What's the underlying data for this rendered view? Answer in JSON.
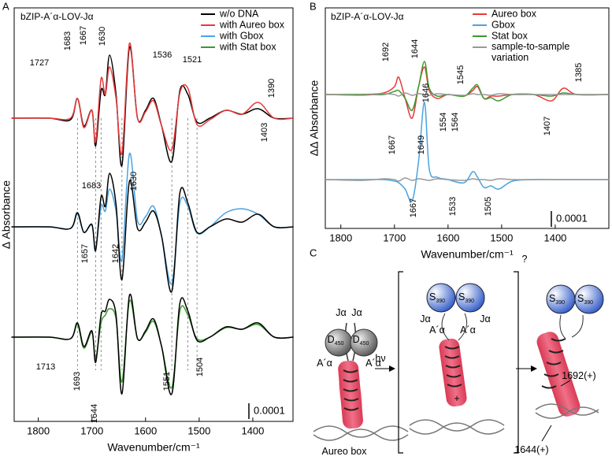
{
  "panels": [
    "A",
    "B",
    "C"
  ],
  "chart_data": [
    {
      "type": "line",
      "title": "bZIP-A´α-LOV-Jα",
      "x_label": "Wavenumber/cm⁻¹",
      "y_label": "Δ Absorbance",
      "x": [
        1850,
        1780,
        1740,
        1727,
        1715,
        1700,
        1693,
        1683,
        1675,
        1667,
        1655,
        1644,
        1630,
        1615,
        1600,
        1585,
        1570,
        1551,
        1536,
        1521,
        1504,
        1480,
        1450,
        1420,
        1390,
        1360,
        1324
      ],
      "xlim": [
        1845,
        1325
      ],
      "xticks": [
        1800,
        1700,
        1600,
        1500,
        1400
      ],
      "ylim": [
        0,
        0.002625
      ],
      "scale_bar": 0.0001,
      "legend": "upper right",
      "reference_lines": [
        1727,
        1693,
        1683,
        1644,
        1551,
        1521,
        1504
      ],
      "series": [
        {
          "name": "w/o DNA",
          "color": "#000000",
          "values": [
            0.001925,
            0.001925,
            0.001915,
            0.00205,
            0.001875,
            0.001975,
            0.00175,
            0.0021,
            0.002075,
            0.002325,
            0.002075,
            0.001625,
            0.002375,
            0.001925,
            0.001975,
            0.00205,
            0.001875,
            0.00165,
            0.0021,
            0.002075,
            0.0019,
            0.001925,
            0.001975,
            0.00195,
            0.001985,
            0.001925,
            0.001925
          ]
        },
        {
          "name": "with Aureo box",
          "color": "#e8393b",
          "values": [
            0.001925,
            0.001925,
            0.001925,
            0.00205,
            0.001865,
            0.001975,
            0.001775,
            0.002175,
            0.002075,
            0.00225,
            0.00205,
            0.0017,
            0.0024,
            0.001925,
            0.001965,
            0.002035,
            0.001875,
            0.001725,
            0.002085,
            0.002115,
            0.001885,
            0.001915,
            0.001975,
            0.00195,
            0.002025,
            0.001925,
            0.001925
          ]
        },
        {
          "name": "with Gbox",
          "color": "#4aa3df",
          "values": [
            0.001235,
            0.001235,
            0.001225,
            0.001315,
            0.0012,
            0.001245,
            0.0011,
            0.001365,
            0.001335,
            0.001475,
            0.001335,
            0.001025,
            0.0017,
            0.001275,
            0.0013,
            0.001365,
            0.001175,
            0.000875,
            0.001385,
            0.001365,
            0.001195,
            0.001235,
            0.001325,
            0.00135,
            0.001315,
            0.001235,
            0.001235
          ]
        },
        {
          "name": "with Stat box",
          "color": "#3a9a2e",
          "values": [
            0.000535,
            0.000535,
            0.000525,
            0.000615,
            0.000465,
            0.000565,
            0.0004,
            0.000625,
            0.000675,
            0.000715,
            0.00065,
            0.00025,
            0.000765,
            0.000525,
            0.000565,
            0.000635,
            0.000475,
            0.000215,
            0.0007,
            0.000675,
            0.000525,
            0.000535,
            0.000595,
            0.000585,
            0.000615,
            0.000535,
            0.000535
          ]
        },
        {
          "color": "#000000",
          "values": [
            0.001235,
            0.001235,
            0.001225,
            0.001325,
            0.0012,
            0.00125,
            0.001085,
            0.001425,
            0.001365,
            0.001575,
            0.001375,
            0.0009,
            0.001525,
            0.001225,
            0.001265,
            0.001335,
            0.001175,
            0.000825,
            0.00145,
            0.001385,
            0.0012,
            0.001235,
            0.001285,
            0.001265,
            0.001315,
            0.001235,
            0.001235
          ]
        },
        {
          "color": "#000000",
          "values": [
            0.000535,
            0.000535,
            0.000525,
            0.000625,
            0.000475,
            0.000575,
            0.000375,
            0.000675,
            0.0007,
            0.000775,
            0.000675,
            0.000175,
            0.0008,
            0.000525,
            0.000575,
            0.00065,
            0.000475,
            0.000175,
            0.00075,
            0.0007,
            0.000515,
            0.000535,
            0.0006,
            0.000585,
            0.000625,
            0.000535,
            0.000535
          ]
        }
      ],
      "annotations": [
        {
          "text": "1727",
          "color": "#000000"
        },
        {
          "text": "1683",
          "color": "#e8393b"
        },
        {
          "text": "1667",
          "color": "#000000"
        },
        {
          "text": "1630",
          "color": "#000000"
        },
        {
          "text": "1536",
          "color": "#000000"
        },
        {
          "text": "1521",
          "color": "#000000"
        },
        {
          "text": "1390",
          "color": "#e8393b"
        },
        {
          "text": "1403",
          "color": "#e8393b"
        },
        {
          "text": "1683",
          "color": "#000000"
        },
        {
          "text": "1630",
          "color": "#4aa3df"
        },
        {
          "text": "1657",
          "color": "#4aa3df"
        },
        {
          "text": "1642",
          "color": "#4aa3df"
        },
        {
          "text": "1713",
          "color": "#000000"
        },
        {
          "text": "1693",
          "color": "#000000"
        },
        {
          "text": "1644",
          "color": "#000000"
        },
        {
          "text": "1551",
          "color": "#000000"
        },
        {
          "text": "1504",
          "color": "#000000"
        }
      ]
    },
    {
      "type": "line",
      "title": "bZIP-A´α-LOV-Jα",
      "x_label": "Wavenumber/cm⁻¹",
      "y_label": "ΔΔ Absorbance",
      "x": [
        1829,
        1760,
        1720,
        1700,
        1692,
        1680,
        1667,
        1655,
        1644,
        1635,
        1620,
        1600,
        1570,
        1554,
        1545,
        1533,
        1520,
        1505,
        1480,
        1440,
        1407,
        1385,
        1360,
        1300
      ],
      "xlim": [
        1829,
        1300
      ],
      "xticks": [
        1800,
        1700,
        1600,
        1500,
        1400
      ],
      "ylim": [
        0,
        0.0014
      ],
      "scale_bar": 0.0001,
      "legend": "upper right",
      "series": [
        {
          "name": "Aureo box",
          "color": "#e8393b",
          "values": [
            0.00085,
            0.00085,
            0.00086,
            0.0009,
            0.00096,
            0.000825,
            0.0007,
            0.0009,
            0.001025,
            0.000875,
            0.000825,
            0.00085,
            0.00084,
            0.000875,
            0.0009,
            0.000825,
            0.00084,
            0.00084,
            0.00085,
            0.00085,
            0.00081,
            0.00089,
            0.00085,
            0.00085
          ]
        },
        {
          "name": "Gbox",
          "color": "#4aa3df",
          "values": [
            0.00031,
            0.00031,
            0.00031,
            0.0003,
            0.00029,
            0.00025,
            0.000175,
            0.000425,
            0.0008,
            0.000375,
            0.000325,
            0.00031,
            0.00029,
            0.00036,
            0.000325,
            0.00026,
            0.00027,
            0.00025,
            0.0003,
            0.00031,
            0.00031,
            0.00031,
            0.00031,
            0.00031
          ]
        },
        {
          "name": "Stat box",
          "color": "#3a9a2e",
          "values": [
            0.00085,
            0.00085,
            0.00085,
            0.00087,
            0.000875,
            0.000825,
            0.00075,
            0.0009,
            0.00106,
            0.00089,
            0.00084,
            0.00085,
            0.00084,
            0.00089,
            0.00091,
            0.000825,
            0.00083,
            0.00081,
            0.00085,
            0.00085,
            0.00084,
            0.00086,
            0.00085,
            0.00085
          ]
        },
        {
          "name": "sample-to-sample variation",
          "color": "#999999",
          "values": [
            0.00085,
            0.000845,
            0.000855,
            0.00085,
            0.00084,
            0.00086,
            0.000845,
            0.000855,
            0.00085,
            0.000845,
            0.000855,
            0.00085,
            0.000845,
            0.000855,
            0.00085,
            0.00085,
            0.000845,
            0.000855,
            0.00085,
            0.00085,
            0.00085,
            0.00085,
            0.00085,
            0.00085
          ]
        },
        {
          "color": "#999999",
          "values": [
            0.00031,
            0.000305,
            0.000315,
            0.00031,
            0.0003,
            0.00032,
            0.000305,
            0.000315,
            0.00031,
            0.000305,
            0.000315,
            0.00031,
            0.000305,
            0.000315,
            0.00031,
            0.00031,
            0.000305,
            0.000315,
            0.00031,
            0.00031,
            0.00031,
            0.00031,
            0.00031,
            0.00031
          ]
        }
      ],
      "annotations": [
        {
          "text": "1692",
          "color": "#e8393b"
        },
        {
          "text": "1644",
          "color": "#e8393b"
        },
        {
          "text": "1545",
          "color": "#e8393b"
        },
        {
          "text": "1385",
          "color": "#e8393b"
        },
        {
          "text": "1667",
          "color": "#e8393b"
        },
        {
          "text": "1649",
          "color": "#3a9a2e"
        },
        {
          "text": "1646",
          "color": "#4aa3df"
        },
        {
          "text": "1564",
          "color": "#e8393b"
        },
        {
          "text": "1554",
          "color": "#4aa3df"
        },
        {
          "text": "1407",
          "color": "#e8393b"
        },
        {
          "text": "1667",
          "color": "#4aa3df"
        },
        {
          "text": "1533",
          "color": "#4aa3df"
        },
        {
          "text": "1505",
          "color": "#4aa3df"
        }
      ]
    }
  ],
  "panel_c": {
    "labels": [
      {
        "text": "Jα",
        "color": "#000000"
      },
      {
        "text": "Jα",
        "color": "#999999"
      },
      {
        "text": "D",
        "sub": "450",
        "color": "#000000"
      },
      {
        "text": "D",
        "sub": "450",
        "color": "#000000"
      },
      {
        "text": "A´α",
        "color": "#000000"
      },
      {
        "text": "A´α",
        "color": "#000000"
      },
      {
        "text": "Aureo box",
        "color": "#000000"
      },
      {
        "text": "hν",
        "color": "#2255aa"
      },
      {
        "text": "S",
        "sub": "390",
        "color": "#000000"
      },
      {
        "text": "S",
        "sub": "390",
        "color": "#000000"
      },
      {
        "text": "Jα",
        "color": "#000000"
      },
      {
        "text": "Jα",
        "color": "#999999"
      },
      {
        "text": "A´α",
        "color": "#000000"
      },
      {
        "text": "A´α",
        "color": "#000000"
      },
      {
        "text": "?",
        "color": "#000000"
      },
      {
        "text": "+",
        "color": "#000000"
      },
      {
        "text": "S",
        "sub": "390",
        "color": "#000000"
      },
      {
        "text": "S",
        "sub": "390",
        "color": "#000000"
      },
      {
        "text": "1692(+)",
        "color": "#000000"
      },
      {
        "text": "1644(+)",
        "color": "#000000"
      }
    ]
  }
}
